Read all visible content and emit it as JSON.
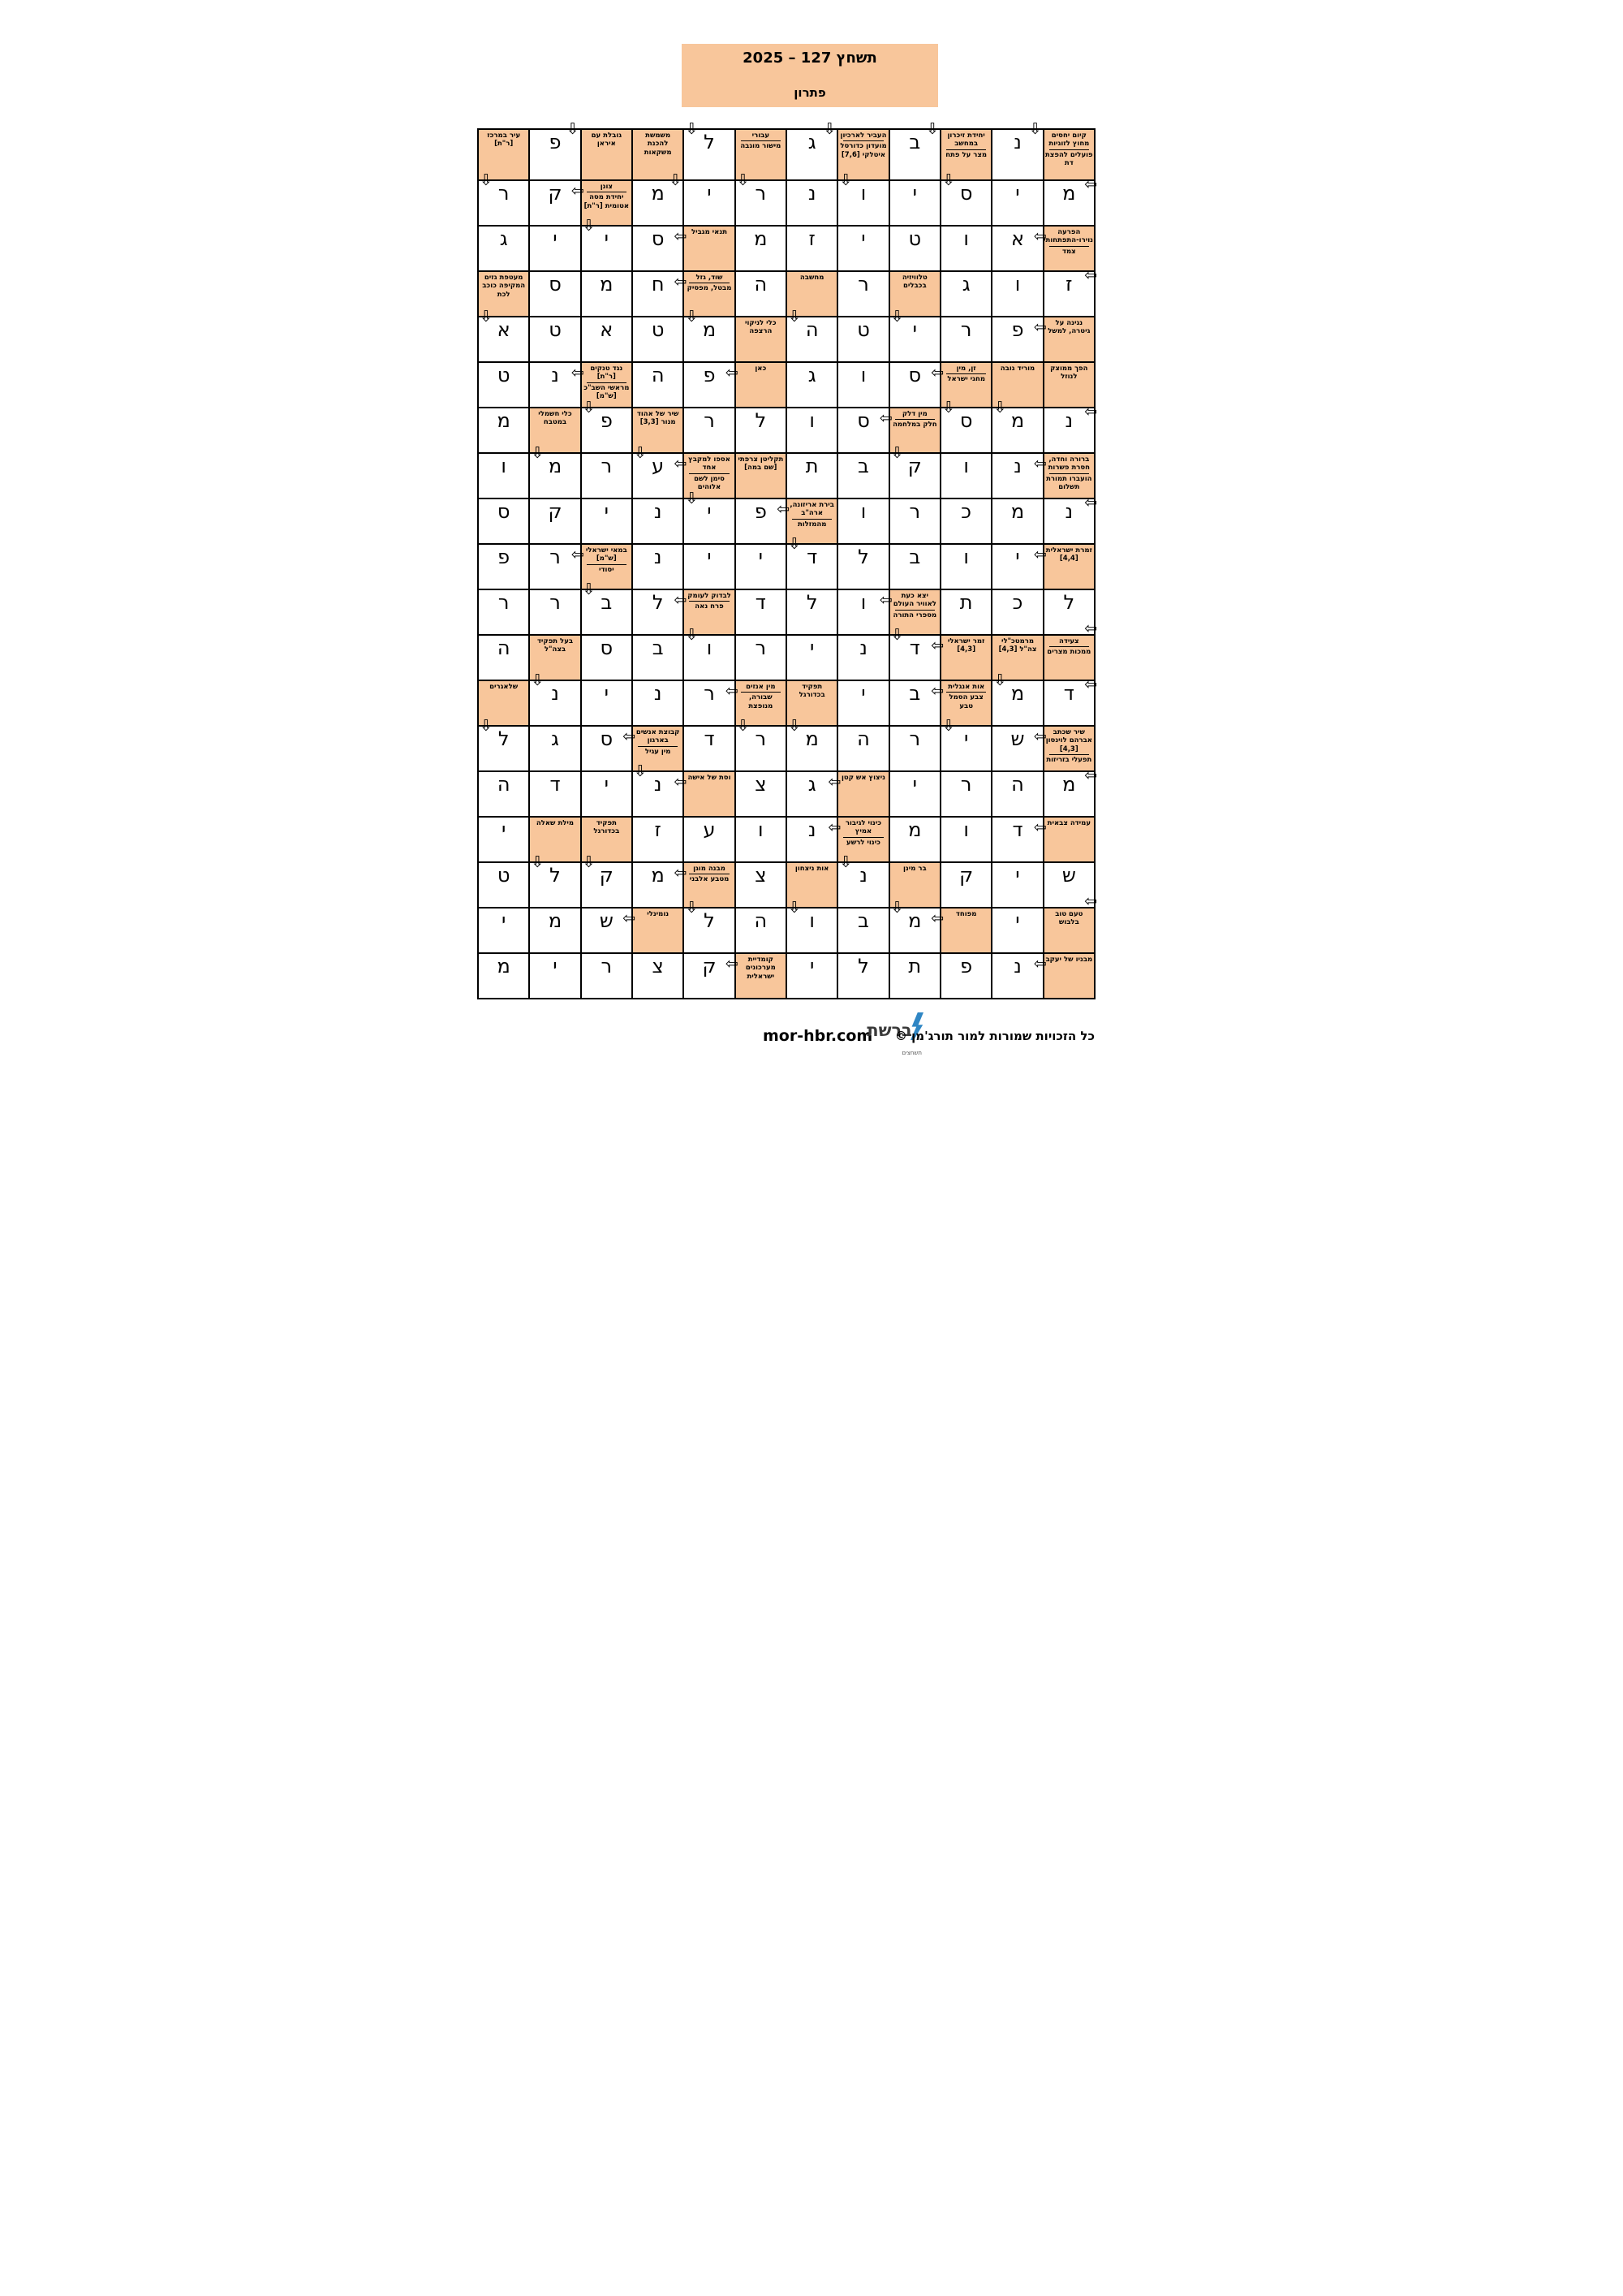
{
  "title": {
    "line1": "תשחץ 127 – 2025",
    "line2": "פתרון"
  },
  "colors": {
    "clue_bg": "#F8C69B",
    "grid_line": "#000000",
    "logo_blue": "#2F86C4"
  },
  "icons": {
    "arrow_down": "⇩",
    "arrow_left": "⇦"
  },
  "footer": {
    "site": "mor-hbr.com",
    "logo_main": "ברשת",
    "logo_sub": "תשחצים",
    "copyright": "כל הזכויות שמורות למור תורג'מן ©"
  },
  "grid": {
    "cols": 12,
    "rows": 19,
    "cells": [
      [
        {
          "c": [
            "עיר במרכז [ר\"ת]"
          ]
        },
        {
          "l": "פ",
          "a": [
            "dn-tr"
          ]
        },
        {
          "c": [
            "גובלת עם איראן"
          ]
        },
        {
          "c": [
            "משמשת להכנת משקאות"
          ]
        },
        {
          "l": "ל",
          "a": [
            "dn-tl"
          ]
        },
        {
          "c": [
            "עבורי",
            "מישור מוגבה"
          ]
        },
        {
          "l": "ג",
          "a": [
            "dn-tr"
          ]
        },
        {
          "c": [
            "העביר לארכיון",
            "מועדון כדורסל איטלקי [7,6]"
          ]
        },
        {
          "l": "ב",
          "a": [
            "dn-tr"
          ]
        },
        {
          "c": [
            "יחידת זיכרון במחשב",
            "מצר על פתח"
          ]
        },
        {
          "l": "נ",
          "a": [
            "dn-tr"
          ]
        },
        {
          "c": [
            "קיום יחסים מחוץ לזוגיות",
            "פועלים להפצת דת"
          ]
        }
      ],
      [
        {
          "l": "ר",
          "a": [
            "dn-tl"
          ]
        },
        {
          "l": "ק",
          "a": [
            "lf-r"
          ]
        },
        {
          "c": [
            "צונן",
            "יחידת מסה אטומית [ר\"ת]"
          ]
        },
        {
          "l": "מ",
          "a": [
            "dn-tr"
          ]
        },
        {
          "l": "י"
        },
        {
          "l": "ר",
          "a": [
            "dn-tl"
          ]
        },
        {
          "l": "נ"
        },
        {
          "l": "ו",
          "a": [
            "dn-tl"
          ]
        },
        {
          "l": "י"
        },
        {
          "l": "ס",
          "a": [
            "dn-tl"
          ]
        },
        {
          "l": "י"
        },
        {
          "l": "מ",
          "a": [
            "lf-rt"
          ]
        }
      ],
      [
        {
          "l": "ג"
        },
        {
          "l": "י"
        },
        {
          "l": "י",
          "a": [
            "dn-tl"
          ]
        },
        {
          "l": "ס",
          "a": [
            "lf-r"
          ]
        },
        {
          "c": [
            "תנאי מגביל"
          ]
        },
        {
          "l": "מ"
        },
        {
          "l": "ז"
        },
        {
          "l": "י"
        },
        {
          "l": "ט"
        },
        {
          "l": "ו"
        },
        {
          "l": "א",
          "a": [
            "lf-r"
          ]
        },
        {
          "c": [
            "הפרעה נוירו-התפתחותית",
            "צמד"
          ]
        }
      ],
      [
        {
          "c": [
            "מעטפת גזים המקיפה כוכב לכת"
          ]
        },
        {
          "l": "ס"
        },
        {
          "l": "מ"
        },
        {
          "l": "ח",
          "a": [
            "lf-r"
          ]
        },
        {
          "c": [
            "שוד, גזל",
            "מבטל, מפסיק"
          ]
        },
        {
          "l": "ה"
        },
        {
          "c": [
            "מחשבה"
          ]
        },
        {
          "l": "ר"
        },
        {
          "c": [
            "טלוויזיה בכבלים"
          ]
        },
        {
          "l": "ג"
        },
        {
          "l": "ו"
        },
        {
          "l": "ז",
          "a": [
            "lf-rt"
          ]
        }
      ],
      [
        {
          "l": "א",
          "a": [
            "dn-tl"
          ]
        },
        {
          "l": "ט"
        },
        {
          "l": "א"
        },
        {
          "l": "ט"
        },
        {
          "l": "מ",
          "a": [
            "dn-tl"
          ]
        },
        {
          "c": [
            "כלי לניקוי הרצפה"
          ]
        },
        {
          "l": "ה",
          "a": [
            "dn-tl"
          ]
        },
        {
          "l": "ט"
        },
        {
          "l": "י",
          "a": [
            "dn-tl"
          ]
        },
        {
          "l": "ר"
        },
        {
          "l": "פ",
          "a": [
            "lf-r"
          ]
        },
        {
          "c": [
            "נגינה על גיטרה, למשל"
          ]
        }
      ],
      [
        {
          "l": "ט"
        },
        {
          "l": "נ",
          "a": [
            "lf-r"
          ]
        },
        {
          "c": [
            "נגד טנקים [ר\"ת]",
            "מראשי השב\"כ [ש\"מ]"
          ]
        },
        {
          "l": "ה"
        },
        {
          "l": "פ",
          "a": [
            "lf-r"
          ]
        },
        {
          "c": [
            "כאן"
          ]
        },
        {
          "l": "ג"
        },
        {
          "l": "ו"
        },
        {
          "l": "ס",
          "a": [
            "lf-r"
          ]
        },
        {
          "c": [
            "זן, מין",
            "מחגי ישראל"
          ]
        },
        {
          "c": [
            "מוריד גובה"
          ]
        },
        {
          "c": [
            "הפך ממוצק לנוזל"
          ]
        }
      ],
      [
        {
          "l": "מ"
        },
        {
          "c": [
            "כלי חשמלי במטבח"
          ]
        },
        {
          "l": "פ",
          "a": [
            "dn-tl"
          ]
        },
        {
          "c": [
            "שיר של אהוד מנור [3,3]"
          ]
        },
        {
          "l": "ר"
        },
        {
          "l": "ל"
        },
        {
          "l": "ו"
        },
        {
          "l": "ס",
          "a": [
            "lf-r"
          ]
        },
        {
          "c": [
            "מין דלק",
            "חלק במלחמה"
          ]
        },
        {
          "l": "ס",
          "a": [
            "dn-tl"
          ]
        },
        {
          "l": "מ",
          "a": [
            "dn-tl"
          ]
        },
        {
          "l": "נ",
          "a": [
            "lf-rt"
          ]
        }
      ],
      [
        {
          "l": "ו"
        },
        {
          "l": "מ",
          "a": [
            "dn-tl"
          ]
        },
        {
          "l": "ר"
        },
        {
          "l": "ע",
          "a": [
            "dn-tl",
            "lf-r"
          ]
        },
        {
          "c": [
            "אספו למקבץ אחד",
            "סימן לשם אלוהים"
          ]
        },
        {
          "c": [
            "תקליטן צרפתי [שם במה]"
          ]
        },
        {
          "l": "ת"
        },
        {
          "l": "ב"
        },
        {
          "l": "ק",
          "a": [
            "dn-tl"
          ]
        },
        {
          "l": "ו"
        },
        {
          "l": "נ",
          "a": [
            "lf-r"
          ]
        },
        {
          "c": [
            "ברורה וחדה, חסרת פשרות",
            "הועברו תמורת תשלום"
          ]
        }
      ],
      [
        {
          "l": "ס"
        },
        {
          "l": "ק"
        },
        {
          "l": "י"
        },
        {
          "l": "נ"
        },
        {
          "l": "י",
          "a": [
            "dn-tl"
          ]
        },
        {
          "l": "פ",
          "a": [
            "lf-r"
          ]
        },
        {
          "c": [
            "בירת אריזונה, ארה\"ב",
            "מהמזלות"
          ]
        },
        {
          "l": "ו"
        },
        {
          "l": "ר"
        },
        {
          "l": "כ"
        },
        {
          "l": "מ"
        },
        {
          "l": "נ",
          "a": [
            "lf-rt"
          ]
        }
      ],
      [
        {
          "l": "פ"
        },
        {
          "l": "ר",
          "a": [
            "lf-r"
          ]
        },
        {
          "c": [
            "במאי ישראלי [ש\"מ]",
            "יסודי"
          ]
        },
        {
          "l": "נ"
        },
        {
          "l": "י"
        },
        {
          "l": "י"
        },
        {
          "l": "ד",
          "a": [
            "dn-tl"
          ]
        },
        {
          "l": "ל"
        },
        {
          "l": "ב"
        },
        {
          "l": "ו"
        },
        {
          "l": "י",
          "a": [
            "lf-r"
          ]
        },
        {
          "c": [
            "זמרת ישראלית [4,4]"
          ]
        }
      ],
      [
        {
          "l": "ר"
        },
        {
          "l": "ר"
        },
        {
          "l": "ב",
          "a": [
            "dn-tl"
          ]
        },
        {
          "l": "ל",
          "a": [
            "lf-r"
          ]
        },
        {
          "c": [
            "לבדוק לעומק",
            "פרח נאה"
          ]
        },
        {
          "l": "ד"
        },
        {
          "l": "ל"
        },
        {
          "l": "ו",
          "a": [
            "lf-r"
          ]
        },
        {
          "c": [
            "יצא כעת לאוויר העולם",
            "מספרי התורה"
          ]
        },
        {
          "l": "ת"
        },
        {
          "l": "כ"
        },
        {
          "l": "ל",
          "a": [
            "lf-rb"
          ]
        }
      ],
      [
        {
          "l": "ה"
        },
        {
          "c": [
            "בעל תפקיד בצה\"ל"
          ]
        },
        {
          "l": "ס"
        },
        {
          "l": "ב"
        },
        {
          "l": "ו",
          "a": [
            "dn-tl"
          ]
        },
        {
          "l": "ר"
        },
        {
          "l": "י"
        },
        {
          "l": "נ"
        },
        {
          "l": "ד",
          "a": [
            "dn-tl",
            "lf-r"
          ]
        },
        {
          "c": [
            "זמר ישראלי [4,3]"
          ]
        },
        {
          "c": [
            "מרמטכ\"לי צה\"ל [4,3]"
          ]
        },
        {
          "c": [
            "צעידה",
            "ממכות מצרים"
          ]
        }
      ],
      [
        {
          "c": [
            "שלאגרים"
          ]
        },
        {
          "l": "נ",
          "a": [
            "dn-tl"
          ]
        },
        {
          "l": "י"
        },
        {
          "l": "נ"
        },
        {
          "l": "ר",
          "a": [
            "lf-r"
          ]
        },
        {
          "c": [
            "מין אנזים",
            "שבורה, מנופצת"
          ]
        },
        {
          "c": [
            "תפקיד בכדורגל"
          ]
        },
        {
          "l": "י"
        },
        {
          "l": "ב",
          "a": [
            "lf-r"
          ]
        },
        {
          "c": [
            "אות אנגלית",
            "צבע הסמל טבע"
          ]
        },
        {
          "l": "מ",
          "a": [
            "dn-tl"
          ]
        },
        {
          "l": "ד",
          "a": [
            "lf-rt"
          ]
        }
      ],
      [
        {
          "l": "ל",
          "a": [
            "dn-tl"
          ]
        },
        {
          "l": "ג"
        },
        {
          "l": "ס",
          "a": [
            "lf-r"
          ]
        },
        {
          "c": [
            "קבוצת אנשים בארגון",
            "מין עגיל"
          ]
        },
        {
          "l": "ד"
        },
        {
          "l": "ר",
          "a": [
            "dn-tl"
          ]
        },
        {
          "l": "מ",
          "a": [
            "dn-tl"
          ]
        },
        {
          "l": "ה"
        },
        {
          "l": "ר"
        },
        {
          "l": "י",
          "a": [
            "dn-tl"
          ]
        },
        {
          "l": "ש",
          "a": [
            "lf-r"
          ]
        },
        {
          "c": [
            "שיר שכתב אברהם לוינסון [4,3]",
            "תפעלי בזריזות"
          ]
        }
      ],
      [
        {
          "l": "ה"
        },
        {
          "l": "ד"
        },
        {
          "l": "י"
        },
        {
          "l": "נ",
          "a": [
            "dn-tl",
            "lf-r"
          ]
        },
        {
          "c": [
            "וסת של אישה"
          ]
        },
        {
          "l": "צ"
        },
        {
          "l": "ג",
          "a": [
            "lf-r"
          ]
        },
        {
          "c": [
            "ניצוץ אש קטן"
          ]
        },
        {
          "l": "י"
        },
        {
          "l": "ר"
        },
        {
          "l": "ה"
        },
        {
          "l": "מ",
          "a": [
            "lf-rt"
          ]
        }
      ],
      [
        {
          "l": "י"
        },
        {
          "c": [
            "מילת שאלה"
          ]
        },
        {
          "c": [
            "תפקיד בכדורגל"
          ]
        },
        {
          "l": "ז"
        },
        {
          "l": "ע"
        },
        {
          "l": "ו"
        },
        {
          "l": "נ",
          "a": [
            "lf-r"
          ]
        },
        {
          "c": [
            "כינוי לגיבור אמיץ",
            "כינוי לרשע"
          ]
        },
        {
          "l": "מ"
        },
        {
          "l": "ו"
        },
        {
          "l": "ד",
          "a": [
            "lf-r"
          ]
        },
        {
          "c": [
            "עמידה צבאית"
          ]
        }
      ],
      [
        {
          "l": "ט"
        },
        {
          "l": "ל",
          "a": [
            "dn-tl"
          ]
        },
        {
          "l": "ק",
          "a": [
            "dn-tl"
          ]
        },
        {
          "l": "מ",
          "a": [
            "lf-r"
          ]
        },
        {
          "c": [
            "מבנה מוגן",
            "מטבע אלבני"
          ]
        },
        {
          "l": "צ"
        },
        {
          "c": [
            "אות ניצחון"
          ]
        },
        {
          "l": "נ",
          "a": [
            "dn-tl"
          ]
        },
        {
          "c": [
            "בר מינן"
          ]
        },
        {
          "l": "ק"
        },
        {
          "l": "י"
        },
        {
          "l": "ש",
          "a": [
            "lf-rb"
          ]
        }
      ],
      [
        {
          "l": "י"
        },
        {
          "l": "מ"
        },
        {
          "l": "ש",
          "a": [
            "lf-r"
          ]
        },
        {
          "c": [
            "נומינלי"
          ]
        },
        {
          "l": "ל",
          "a": [
            "dn-tl"
          ]
        },
        {
          "l": "ה"
        },
        {
          "l": "ו",
          "a": [
            "dn-tl"
          ]
        },
        {
          "l": "ב"
        },
        {
          "l": "מ",
          "a": [
            "dn-tl",
            "lf-r"
          ]
        },
        {
          "c": [
            "מפוחד"
          ]
        },
        {
          "l": "י"
        },
        {
          "c": [
            "טעם טוב בלבוש"
          ]
        }
      ],
      [
        {
          "l": "מ"
        },
        {
          "l": "י"
        },
        {
          "l": "ר"
        },
        {
          "l": "צ"
        },
        {
          "l": "ק",
          "a": [
            "lf-r"
          ]
        },
        {
          "c": [
            "קומדיית מערכונים ישראלית"
          ]
        },
        {
          "l": "י"
        },
        {
          "l": "ל"
        },
        {
          "l": "ת"
        },
        {
          "l": "פ"
        },
        {
          "l": "נ",
          "a": [
            "lf-r"
          ]
        },
        {
          "c": [
            "מבניו של יעקב"
          ]
        }
      ]
    ]
  }
}
